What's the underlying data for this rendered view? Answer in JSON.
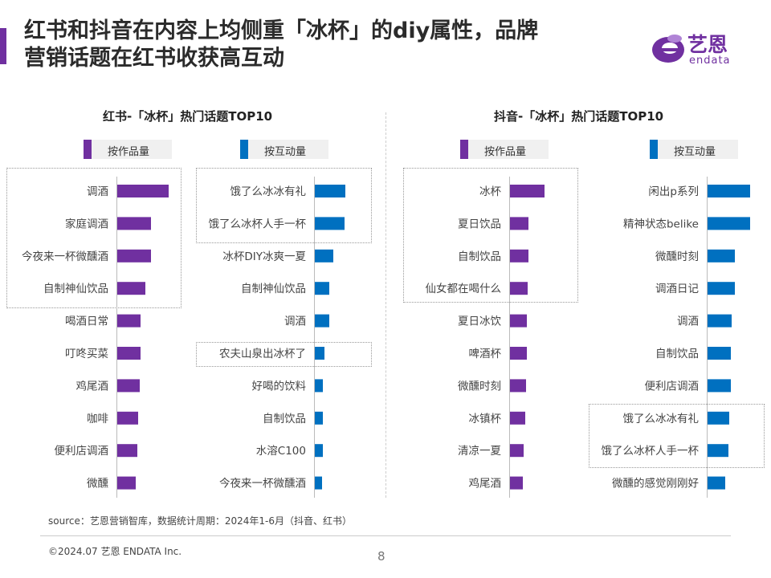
{
  "header": {
    "title_line1": "红书和抖音在内容上均侧重「冰杯」的diy属性，品牌",
    "title_line2": "营销话题在红书收获高互动",
    "logo_cn": "艺恩",
    "logo_en": "endata"
  },
  "legend": {
    "by_works": "按作品量",
    "by_engagement": "按互动量"
  },
  "colors": {
    "purple": "#7030a0",
    "blue": "#0070c0",
    "accent": "#7030a0"
  },
  "chart_data": [
    {
      "type": "bar",
      "orientation": "horizontal",
      "title": "红书-「冰杯」热门话题TOP10",
      "series_name": "按作品量",
      "color": "#7030a0",
      "categories": [
        "调酒",
        "家庭调酒",
        "今夜来一杯微醺酒",
        "自制神仙饮品",
        "喝酒日常",
        "叮咚买菜",
        "鸡尾酒",
        "咖啡",
        "便利店调酒",
        "微醺"
      ],
      "values": [
        64,
        42,
        42,
        35,
        29,
        29,
        28,
        26,
        25,
        23
      ]
    },
    {
      "type": "bar",
      "orientation": "horizontal",
      "title": "红书-「冰杯」热门话题TOP10",
      "series_name": "按互动量",
      "color": "#0070c0",
      "categories": [
        "饿了么冰冰有礼",
        "饿了么冰杯人手一杯",
        "冰杯DIY冰爽一夏",
        "自制神仙饮品",
        "调酒",
        "农夫山泉出冰杯了",
        "好喝的饮料",
        "自制饮品",
        "水溶C100",
        "今夜来一杯微醺酒"
      ],
      "values": [
        38,
        37,
        23,
        18,
        18,
        12,
        10,
        10,
        10,
        9
      ]
    },
    {
      "type": "bar",
      "orientation": "horizontal",
      "title": "抖音-「冰杯」热门话题TOP10",
      "series_name": "按作品量",
      "color": "#7030a0",
      "categories": [
        "冰杯",
        "夏日饮品",
        "自制饮品",
        "仙女都在喝什么",
        "夏日冰饮",
        "啤酒杯",
        "微醺时刻",
        "冰镇杯",
        "清凉一夏",
        "鸡尾酒"
      ],
      "values": [
        43,
        23,
        23,
        22,
        21,
        21,
        20,
        19,
        17,
        16
      ]
    },
    {
      "type": "bar",
      "orientation": "horizontal",
      "title": "抖音-「冰杯」热门话题TOP10",
      "series_name": "按互动量",
      "color": "#0070c0",
      "categories": [
        "闲出p系列",
        "精神状态belike",
        "微醺时刻",
        "调酒日记",
        "调酒",
        "自制饮品",
        "便利店调酒",
        "饿了么冰冰有礼",
        "饿了么冰杯人手一杯",
        "微醺的感觉刚刚好"
      ],
      "values": [
        53,
        53,
        34,
        34,
        30,
        29,
        29,
        27,
        26,
        22
      ]
    }
  ],
  "footer": {
    "source": "source：艺恩营销智库，数据统计周期：2024年1-6月（抖音、红书）",
    "copyright": "©2024.07 艺恩 ENDATA Inc.",
    "page_number": "8"
  }
}
